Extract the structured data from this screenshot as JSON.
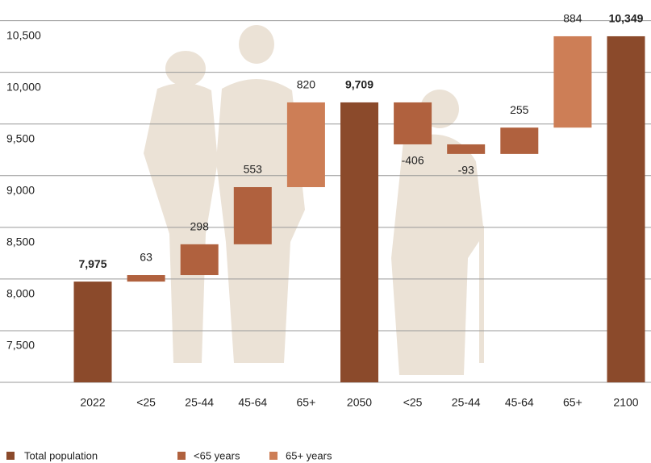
{
  "chart_data": {
    "type": "waterfall",
    "categories": [
      "2022",
      "<25",
      "25-44",
      "45-64",
      "65+",
      "2050",
      "<25",
      "25-44",
      "45-64",
      "65+",
      "2100"
    ],
    "values": [
      7975,
      63,
      298,
      553,
      820,
      9709,
      -406,
      -93,
      255,
      884,
      10349
    ],
    "value_labels": [
      "7,975",
      "63",
      "298",
      "553",
      "820",
      "9,709",
      "-406",
      "-93",
      "255",
      "884",
      "10,349"
    ],
    "bar_series": [
      0,
      1,
      1,
      1,
      2,
      0,
      1,
      1,
      1,
      2,
      0
    ],
    "series": [
      {
        "name": "Total population",
        "color": "#8b4a2b"
      },
      {
        "name": "<65 years",
        "color": "#b0613e"
      },
      {
        "name": "65+ years",
        "color": "#cd7e56"
      }
    ],
    "ylim": [
      7000,
      10700
    ],
    "yticks": [
      {
        "value": 7500,
        "label": "7,500"
      },
      {
        "value": 8000,
        "label": "8,000"
      },
      {
        "value": 8500,
        "label": "8,500"
      },
      {
        "value": 9000,
        "label": "9,000"
      },
      {
        "value": 9500,
        "label": "9,500"
      },
      {
        "value": 10000,
        "label": "10,000"
      },
      {
        "value": 10500,
        "label": "10,500"
      }
    ],
    "grid": true
  }
}
